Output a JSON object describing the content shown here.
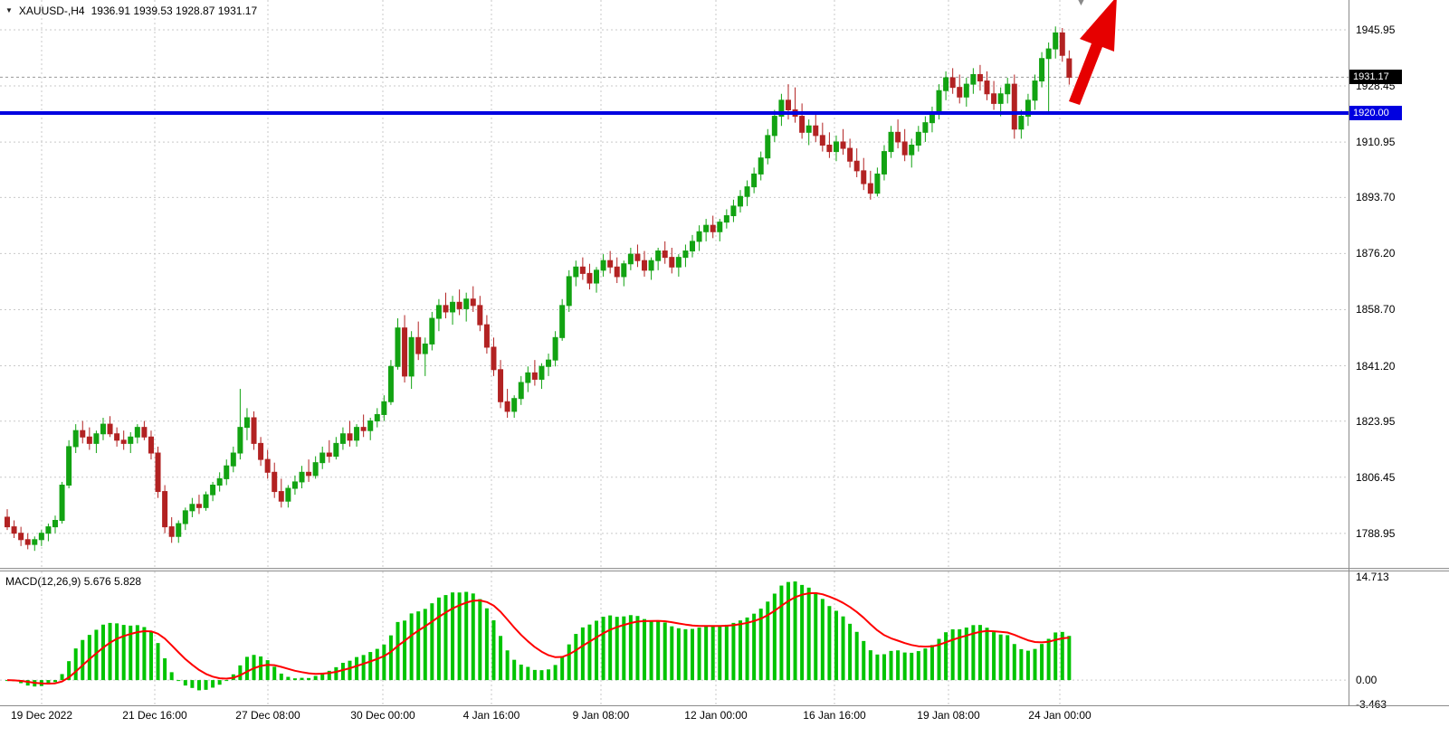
{
  "header": {
    "dropdown_icon": "▼",
    "title": "XAUUSD-,H4",
    "ohlc": "1936.91 1939.53 1928.87 1931.17"
  },
  "macd_panel": {
    "label": "MACD(12,26,9) 5.676 5.828"
  },
  "price_axis": {
    "ticks": [
      "1945.95",
      "1928.45",
      "1910.95",
      "1893.70",
      "1876.20",
      "1858.70",
      "1841.20",
      "1823.95",
      "1806.45",
      "1788.95"
    ],
    "bid_badge": "1931.17",
    "level_badge": "1920.00"
  },
  "macd_axis": {
    "ticks": [
      "14.713",
      "0.00",
      "-3.463"
    ]
  },
  "colors": {
    "bull": "#12a312",
    "bear": "#b22222",
    "macd_hist": "#00c400",
    "macd_signal": "#ff0000",
    "level_line": "#0000e0",
    "grid": "#c9c9c9",
    "bid_line": "#9a9a9a",
    "arrow": "#e60000"
  },
  "chart_data": {
    "type": "candlestick",
    "title": "XAUUSD-,H4",
    "symbol": "XAUUSD-",
    "timeframe": "H4",
    "current_ohlc": {
      "open": 1936.91,
      "high": 1939.53,
      "low": 1928.87,
      "close": 1931.17
    },
    "horizontal_level": 1920.0,
    "annotations": [
      {
        "type": "up-arrow",
        "color": "red"
      }
    ],
    "y_axis": {
      "ticks": [
        1945.95,
        1928.45,
        1910.95,
        1893.7,
        1876.2,
        1858.7,
        1841.2,
        1823.95,
        1806.45,
        1788.95
      ],
      "visible_range": [
        1778.2,
        1955.25
      ]
    },
    "x_labels": [
      "19 Dec 2022",
      "21 Dec 16:00",
      "27 Dec 08:00",
      "30 Dec 00:00",
      "4 Jan 16:00",
      "9 Jan 08:00",
      "12 Jan 00:00",
      "16 Jan 16:00",
      "19 Jan 08:00",
      "24 Jan 00:00"
    ],
    "indicator": {
      "name": "MACD",
      "params": [
        12,
        26,
        9
      ],
      "macd_value": 5.676,
      "signal_value": 5.828,
      "axis_ticks": [
        14.713,
        0.0,
        -3.463
      ]
    },
    "candles": [
      [
        1794,
        1796.5,
        1790,
        1791
      ],
      [
        1791,
        1793,
        1787.5,
        1789
      ],
      [
        1789,
        1791,
        1785,
        1787
      ],
      [
        1787,
        1789,
        1784,
        1785.5
      ],
      [
        1785.5,
        1788,
        1783.5,
        1787
      ],
      [
        1787,
        1790,
        1785,
        1789
      ],
      [
        1789,
        1792,
        1786.5,
        1791
      ],
      [
        1791,
        1794.5,
        1789,
        1793
      ],
      [
        1793,
        1805,
        1792,
        1804
      ],
      [
        1804,
        1818,
        1803,
        1816
      ],
      [
        1816,
        1823,
        1814,
        1821
      ],
      [
        1821,
        1824,
        1817,
        1819
      ],
      [
        1819,
        1822,
        1815,
        1817
      ],
      [
        1817,
        1821,
        1814,
        1820
      ],
      [
        1820,
        1825,
        1818,
        1823
      ],
      [
        1823,
        1825.5,
        1819,
        1820
      ],
      [
        1820,
        1822,
        1816,
        1818
      ],
      [
        1818,
        1821,
        1815,
        1817
      ],
      [
        1817,
        1820.5,
        1814,
        1819
      ],
      [
        1819,
        1823,
        1817,
        1822
      ],
      [
        1822,
        1824,
        1818,
        1819
      ],
      [
        1819,
        1821,
        1812,
        1814
      ],
      [
        1814,
        1816,
        1800,
        1802
      ],
      [
        1802,
        1804,
        1789,
        1791
      ],
      [
        1791,
        1794,
        1786,
        1788
      ],
      [
        1788,
        1793,
        1786,
        1792
      ],
      [
        1792,
        1797,
        1790,
        1796
      ],
      [
        1796,
        1800,
        1794,
        1798
      ],
      [
        1798,
        1801,
        1795,
        1797
      ],
      [
        1797,
        1802,
        1796,
        1801
      ],
      [
        1801,
        1805,
        1799,
        1804
      ],
      [
        1804,
        1808,
        1802,
        1806
      ],
      [
        1806,
        1812,
        1804,
        1810
      ],
      [
        1810,
        1816,
        1808,
        1814
      ],
      [
        1814,
        1834,
        1812,
        1822
      ],
      [
        1822,
        1828,
        1818,
        1825
      ],
      [
        1825,
        1827,
        1815,
        1817
      ],
      [
        1817,
        1819,
        1810,
        1812
      ],
      [
        1812,
        1815,
        1806,
        1808
      ],
      [
        1808,
        1811,
        1800,
        1802
      ],
      [
        1802,
        1806,
        1797,
        1799
      ],
      [
        1799,
        1804,
        1797,
        1803
      ],
      [
        1803,
        1807,
        1801,
        1805
      ],
      [
        1805,
        1810,
        1803,
        1808
      ],
      [
        1808,
        1812,
        1805,
        1807
      ],
      [
        1807,
        1813,
        1806,
        1811
      ],
      [
        1811,
        1816,
        1809,
        1814
      ],
      [
        1814,
        1818,
        1811,
        1813
      ],
      [
        1813,
        1819,
        1812,
        1817
      ],
      [
        1817,
        1822,
        1815,
        1820
      ],
      [
        1820,
        1824,
        1816,
        1818
      ],
      [
        1818,
        1823,
        1816,
        1822
      ],
      [
        1822,
        1826,
        1819,
        1821
      ],
      [
        1821,
        1825,
        1818,
        1824
      ],
      [
        1824,
        1828,
        1822,
        1826
      ],
      [
        1826,
        1832,
        1824,
        1830
      ],
      [
        1830,
        1843,
        1829,
        1841
      ],
      [
        1841,
        1856,
        1840,
        1853
      ],
      [
        1853,
        1857,
        1836,
        1838
      ],
      [
        1838,
        1852,
        1834,
        1850
      ],
      [
        1850,
        1855,
        1843,
        1845
      ],
      [
        1845,
        1850,
        1838,
        1848
      ],
      [
        1848,
        1858,
        1846,
        1856
      ],
      [
        1856,
        1862,
        1852,
        1860
      ],
      [
        1860,
        1864,
        1856,
        1858
      ],
      [
        1858,
        1863,
        1854,
        1861
      ],
      [
        1861,
        1865,
        1857,
        1859
      ],
      [
        1859,
        1864,
        1855,
        1862
      ],
      [
        1862,
        1866,
        1858,
        1860
      ],
      [
        1860,
        1863,
        1852,
        1854
      ],
      [
        1854,
        1857,
        1845,
        1847
      ],
      [
        1847,
        1850,
        1838,
        1840
      ],
      [
        1840,
        1843,
        1828,
        1830
      ],
      [
        1830,
        1834,
        1825,
        1827
      ],
      [
        1827,
        1832,
        1825,
        1831
      ],
      [
        1831,
        1838,
        1829,
        1836
      ],
      [
        1836,
        1841,
        1833,
        1839
      ],
      [
        1839,
        1843,
        1835,
        1837
      ],
      [
        1837,
        1842,
        1834,
        1841
      ],
      [
        1841,
        1845,
        1838,
        1843
      ],
      [
        1843,
        1852,
        1841,
        1850
      ],
      [
        1850,
        1862,
        1849,
        1860
      ],
      [
        1860,
        1871,
        1858,
        1869
      ],
      [
        1869,
        1874,
        1866,
        1872
      ],
      [
        1872,
        1875,
        1868,
        1870
      ],
      [
        1870,
        1873,
        1865,
        1867
      ],
      [
        1867,
        1872,
        1864,
        1871
      ],
      [
        1871,
        1876,
        1869,
        1874
      ],
      [
        1874,
        1877,
        1870,
        1872
      ],
      [
        1872,
        1875,
        1867,
        1869
      ],
      [
        1869,
        1874,
        1866,
        1873
      ],
      [
        1873,
        1878,
        1871,
        1876
      ],
      [
        1876,
        1879,
        1872,
        1874
      ],
      [
        1874,
        1877,
        1869,
        1871
      ],
      [
        1871,
        1875,
        1868,
        1874
      ],
      [
        1874,
        1878,
        1871,
        1877
      ],
      [
        1877,
        1880,
        1873,
        1875
      ],
      [
        1875,
        1878,
        1870,
        1872
      ],
      [
        1872,
        1876,
        1869,
        1875
      ],
      [
        1875,
        1879,
        1872,
        1877
      ],
      [
        1877,
        1882,
        1875,
        1880
      ],
      [
        1880,
        1885,
        1877,
        1883
      ],
      [
        1883,
        1887,
        1880,
        1885
      ],
      [
        1885,
        1888,
        1881,
        1883
      ],
      [
        1883,
        1887,
        1880,
        1886
      ],
      [
        1886,
        1890,
        1884,
        1888
      ],
      [
        1888,
        1893,
        1886,
        1891
      ],
      [
        1891,
        1896,
        1889,
        1894
      ],
      [
        1894,
        1899,
        1891,
        1897
      ],
      [
        1897,
        1903,
        1895,
        1901
      ],
      [
        1901,
        1908,
        1899,
        1906
      ],
      [
        1906,
        1915,
        1904,
        1913
      ],
      [
        1913,
        1921,
        1911,
        1919
      ],
      [
        1919,
        1926,
        1916,
        1924
      ],
      [
        1924,
        1929,
        1918,
        1921
      ],
      [
        1921,
        1928,
        1917,
        1919
      ],
      [
        1919,
        1923,
        1912,
        1914
      ],
      [
        1914,
        1918,
        1910,
        1916
      ],
      [
        1916,
        1920,
        1911,
        1913
      ],
      [
        1913,
        1917,
        1908,
        1910
      ],
      [
        1910,
        1914,
        1906,
        1908
      ],
      [
        1908,
        1913,
        1905,
        1911
      ],
      [
        1911,
        1915,
        1907,
        1909
      ],
      [
        1909,
        1912,
        1903,
        1905
      ],
      [
        1905,
        1909,
        1900,
        1902
      ],
      [
        1902,
        1906,
        1896,
        1898
      ],
      [
        1898,
        1902,
        1893,
        1895
      ],
      [
        1895,
        1903,
        1894,
        1901
      ],
      [
        1901,
        1910,
        1899,
        1908
      ],
      [
        1908,
        1916,
        1906,
        1914
      ],
      [
        1914,
        1918,
        1909,
        1911
      ],
      [
        1911,
        1915,
        1905,
        1907
      ],
      [
        1907,
        1912,
        1903,
        1910
      ],
      [
        1910,
        1916,
        1908,
        1914
      ],
      [
        1914,
        1919,
        1911,
        1917
      ],
      [
        1917,
        1922,
        1914,
        1920
      ],
      [
        1920,
        1929,
        1918,
        1927
      ],
      [
        1927,
        1933,
        1924,
        1931
      ],
      [
        1931,
        1934,
        1926,
        1928
      ],
      [
        1928,
        1932,
        1923,
        1925
      ],
      [
        1925,
        1931,
        1922,
        1929
      ],
      [
        1929,
        1934,
        1926,
        1932
      ],
      [
        1932,
        1935,
        1927,
        1930
      ],
      [
        1930,
        1933,
        1924,
        1926
      ],
      [
        1926,
        1930,
        1921,
        1923
      ],
      [
        1923,
        1928,
        1919,
        1926
      ],
      [
        1926,
        1931,
        1923,
        1929
      ],
      [
        1929,
        1932,
        1912,
        1915
      ],
      [
        1915,
        1921,
        1912,
        1919
      ],
      [
        1919,
        1926,
        1916,
        1924
      ],
      [
        1924,
        1932,
        1921,
        1930
      ],
      [
        1930,
        1939,
        1928,
        1937
      ],
      [
        1937,
        1942,
        1920.5,
        1940
      ],
      [
        1940,
        1947,
        1937,
        1945
      ],
      [
        1945,
        1946.5,
        1936,
        1938
      ],
      [
        1936.91,
        1939.53,
        1928.87,
        1931.17
      ]
    ]
  }
}
